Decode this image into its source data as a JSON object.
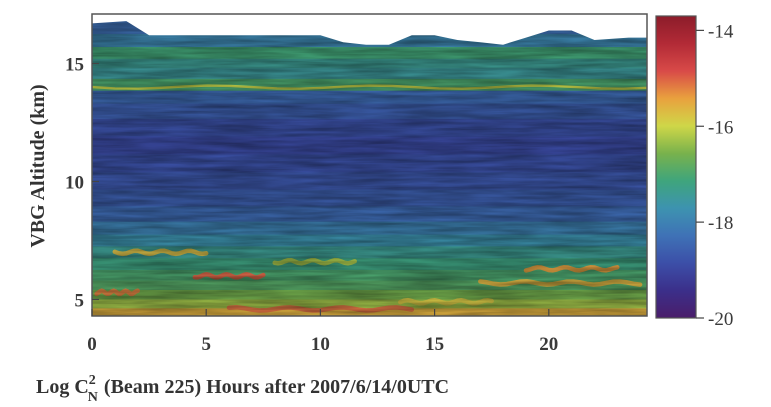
{
  "chart_data": {
    "type": "heatmap",
    "ylabel": "VBG Altitude (km)",
    "x_ticks": [
      "0",
      "5",
      "10",
      "15",
      "20"
    ],
    "x_tick_values": [
      0,
      5,
      10,
      15,
      20
    ],
    "y_ticks": [
      "5",
      "10",
      "15"
    ],
    "y_tick_values": [
      5,
      10,
      15
    ],
    "xlim": [
      0,
      24.3
    ],
    "ylim": [
      4.3,
      17.1
    ],
    "colorbar": {
      "ticks": [
        "-14",
        "-16",
        "-18",
        "-20"
      ],
      "tick_values": [
        -14,
        -16,
        -18,
        -20
      ],
      "range": [
        -20,
        -13.7
      ],
      "colors": [
        "#4a1d6a",
        "#3b2f8a",
        "#3c4fa8",
        "#3f72b6",
        "#3d93b0",
        "#3fa57c",
        "#79b24c",
        "#cfd748",
        "#e9a13e",
        "#d84a48",
        "#b22a36",
        "#8c1c2a"
      ]
    },
    "caption": {
      "log_c": "Log C",
      "superscript": "2",
      "subscript": "N",
      "rest": "(Beam 225)   Hours after 2007/6/14/0UTC"
    },
    "data_top_altitude_km": [
      [
        0,
        16.7
      ],
      [
        1.5,
        16.8
      ],
      [
        2.5,
        16.2
      ],
      [
        10,
        16.2
      ],
      [
        11,
        15.9
      ],
      [
        12,
        15.8
      ],
      [
        13,
        15.8
      ],
      [
        14,
        16.2
      ],
      [
        15,
        16.2
      ],
      [
        16,
        16.0
      ],
      [
        17,
        15.9
      ],
      [
        18,
        15.8
      ],
      [
        19,
        16.1
      ],
      [
        20,
        16.4
      ],
      [
        21,
        16.4
      ],
      [
        22,
        16.0
      ],
      [
        23.5,
        16.1
      ],
      [
        24.3,
        16.1
      ]
    ],
    "bands": [
      {
        "alt_km": 16.5,
        "log_cn2": -18.3
      },
      {
        "alt_km": 16.0,
        "log_cn2": -17.9
      },
      {
        "alt_km": 15.4,
        "log_cn2": -17.1
      },
      {
        "alt_km": 15.0,
        "log_cn2": -17.4
      },
      {
        "alt_km": 14.6,
        "log_cn2": -17.5
      },
      {
        "alt_km": 14.1,
        "log_cn2": -17.0
      },
      {
        "alt_km": 13.6,
        "log_cn2": -18.4
      },
      {
        "alt_km": 13.0,
        "log_cn2": -18.6
      },
      {
        "alt_km": 12.3,
        "log_cn2": -18.8
      },
      {
        "alt_km": 11.5,
        "log_cn2": -18.9
      },
      {
        "alt_km": 10.8,
        "log_cn2": -18.8
      },
      {
        "alt_km": 10.0,
        "log_cn2": -18.7
      },
      {
        "alt_km": 9.3,
        "log_cn2": -18.6
      },
      {
        "alt_km": 8.6,
        "log_cn2": -18.4
      },
      {
        "alt_km": 8.0,
        "log_cn2": -18.0
      },
      {
        "alt_km": 7.5,
        "log_cn2": -17.7
      },
      {
        "alt_km": 7.0,
        "log_cn2": -17.4
      },
      {
        "alt_km": 6.5,
        "log_cn2": -17.2
      },
      {
        "alt_km": 6.0,
        "log_cn2": -17.0
      },
      {
        "alt_km": 5.6,
        "log_cn2": -16.9
      },
      {
        "alt_km": 5.2,
        "log_cn2": -16.6
      },
      {
        "alt_km": 4.8,
        "log_cn2": -16.3
      },
      {
        "alt_km": 4.45,
        "log_cn2": -15.6
      }
    ],
    "features": [
      {
        "x0": 0.0,
        "x1": 24.3,
        "alt_km": 14.0,
        "log_cn2": -16.0
      },
      {
        "x0": 4.5,
        "x1": 7.5,
        "alt_km": 6.0,
        "log_cn2": -15.0
      },
      {
        "x0": 0.2,
        "x1": 2.0,
        "alt_km": 5.3,
        "log_cn2": -15.2
      },
      {
        "x0": 13.5,
        "x1": 17.5,
        "alt_km": 4.9,
        "log_cn2": -15.8
      },
      {
        "x0": 6.0,
        "x1": 14.0,
        "alt_km": 4.6,
        "log_cn2": -15.1
      },
      {
        "x0": 17.0,
        "x1": 24.0,
        "alt_km": 5.7,
        "log_cn2": -15.6
      },
      {
        "x0": 1.0,
        "x1": 5.0,
        "alt_km": 7.0,
        "log_cn2": -15.7
      },
      {
        "x0": 8.0,
        "x1": 11.5,
        "alt_km": 6.6,
        "log_cn2": -16.2
      },
      {
        "x0": 19.0,
        "x1": 23.0,
        "alt_km": 6.3,
        "log_cn2": -15.4
      }
    ]
  }
}
